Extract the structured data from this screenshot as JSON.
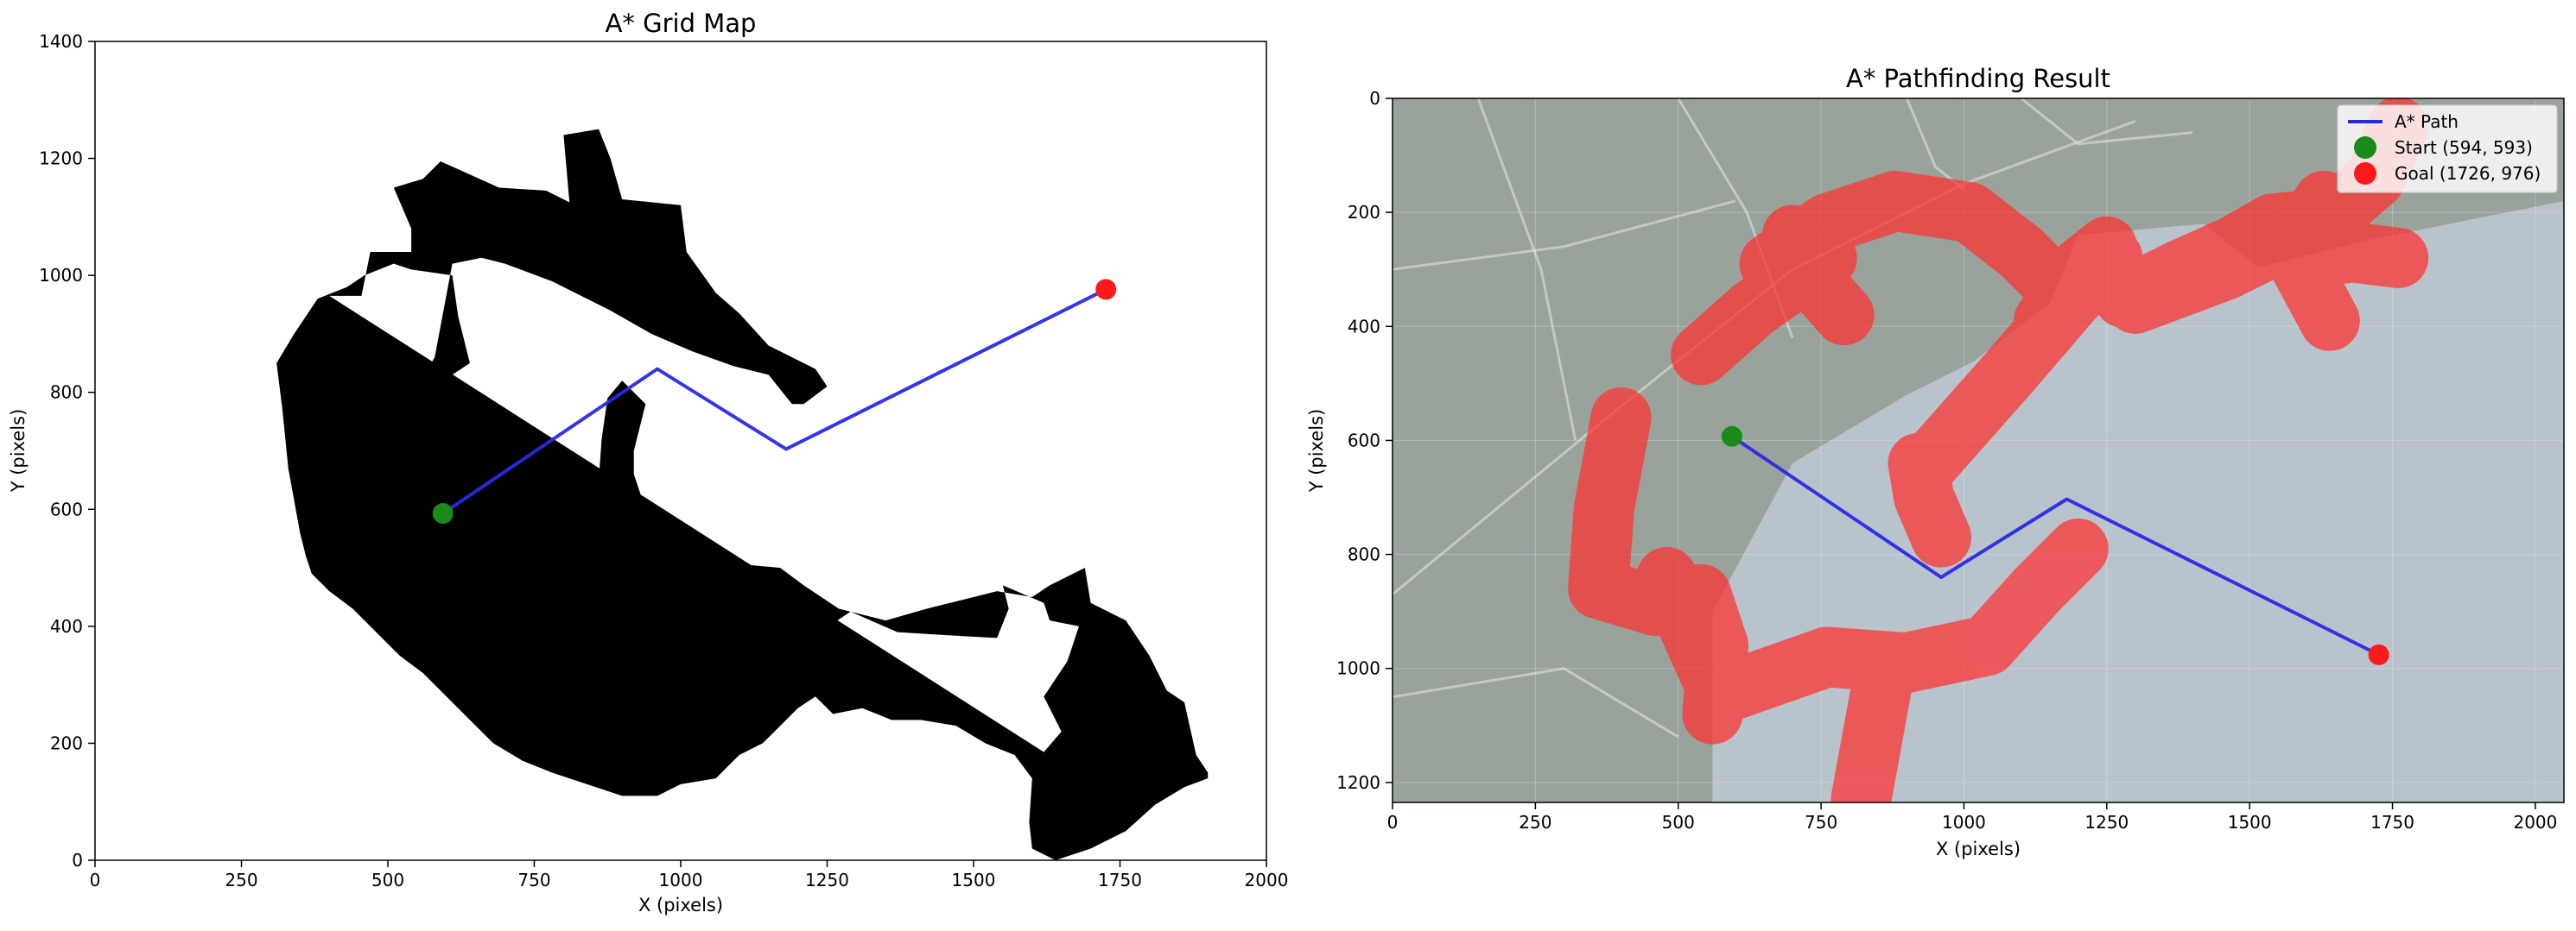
{
  "chart_data": [
    {
      "type": "scatter",
      "title": "A* Grid Map",
      "xlabel": "X (pixels)",
      "ylabel": "Y (pixels)",
      "xlim": [
        0,
        2000
      ],
      "ylim": [
        0,
        1400
      ],
      "y_direction": "up",
      "xticks": [
        "0",
        "250",
        "500",
        "750",
        "1000",
        "1250",
        "1500",
        "1750",
        "2000"
      ],
      "yticks": [
        "0",
        "200",
        "400",
        "600",
        "800",
        "1000",
        "1200",
        "1400"
      ],
      "grid": false,
      "obstacle_color": "#000000",
      "obstacle_outline": [
        [
          [
            400,
            965
          ],
          [
            455,
            965
          ],
          [
            470,
            1040
          ],
          [
            540,
            1040
          ],
          [
            540,
            1080
          ],
          [
            510,
            1150
          ],
          [
            560,
            1165
          ],
          [
            590,
            1195
          ],
          [
            690,
            1150
          ],
          [
            770,
            1145
          ],
          [
            810,
            1125
          ],
          [
            800,
            1240
          ],
          [
            860,
            1250
          ],
          [
            880,
            1200
          ],
          [
            900,
            1130
          ],
          [
            1000,
            1120
          ],
          [
            1010,
            1040
          ],
          [
            1060,
            970
          ],
          [
            1100,
            935
          ],
          [
            1150,
            880
          ],
          [
            1230,
            840
          ],
          [
            1250,
            810
          ],
          [
            1210,
            780
          ],
          [
            1190,
            780
          ],
          [
            1150,
            830
          ],
          [
            1090,
            845
          ],
          [
            1020,
            870
          ],
          [
            950,
            900
          ],
          [
            880,
            940
          ],
          [
            780,
            990
          ],
          [
            700,
            1020
          ],
          [
            660,
            1030
          ],
          [
            610,
            1020
          ],
          [
            595,
            940
          ],
          [
            580,
            860
          ],
          [
            540,
            790
          ],
          [
            495,
            780
          ],
          [
            460,
            770
          ],
          [
            470,
            650
          ],
          [
            520,
            640
          ],
          [
            560,
            590
          ],
          [
            610,
            560
          ],
          [
            650,
            510
          ],
          [
            700,
            460
          ],
          [
            760,
            450
          ],
          [
            830,
            470
          ],
          [
            870,
            500
          ],
          [
            880,
            370
          ],
          [
            820,
            340
          ],
          [
            830,
            290
          ],
          [
            880,
            280
          ],
          [
            1050,
            270
          ],
          [
            1040,
            340
          ],
          [
            1030,
            410
          ],
          [
            1060,
            430
          ],
          [
            1150,
            410
          ],
          [
            1230,
            385
          ],
          [
            1290,
            425
          ],
          [
            1370,
            390
          ],
          [
            1450,
            385
          ],
          [
            1540,
            380
          ],
          [
            1560,
            430
          ],
          [
            1550,
            470
          ],
          [
            1620,
            440
          ],
          [
            1630,
            410
          ],
          [
            1680,
            400
          ],
          [
            1660,
            340
          ],
          [
            1620,
            280
          ],
          [
            1650,
            220
          ],
          [
            1620,
            185
          ],
          [
            1600,
            140
          ],
          [
            1595,
            65
          ],
          [
            1600,
            20
          ],
          [
            1640,
            0
          ],
          [
            1700,
            20
          ],
          [
            1760,
            50
          ],
          [
            1810,
            95
          ],
          [
            1860,
            125
          ],
          [
            1900,
            140
          ],
          [
            1900,
            150
          ],
          [
            1880,
            180
          ],
          [
            1860,
            270
          ],
          [
            1830,
            290
          ],
          [
            1800,
            350
          ],
          [
            1760,
            410
          ],
          [
            1700,
            440
          ],
          [
            1690,
            500
          ],
          [
            1630,
            470
          ],
          [
            1600,
            450
          ],
          [
            1540,
            460
          ],
          [
            1420,
            430
          ],
          [
            1350,
            410
          ],
          [
            1270,
            430
          ],
          [
            1210,
            470
          ],
          [
            1170,
            500
          ],
          [
            1060,
            510
          ],
          [
            1000,
            530
          ],
          [
            940,
            600
          ],
          [
            920,
            660
          ],
          [
            920,
            700
          ],
          [
            940,
            780
          ],
          [
            900,
            820
          ],
          [
            875,
            790
          ],
          [
            865,
            720
          ],
          [
            860,
            650
          ],
          [
            860,
            580
          ],
          [
            830,
            560
          ],
          [
            800,
            510
          ],
          [
            780,
            480
          ],
          [
            740,
            480
          ],
          [
            700,
            520
          ],
          [
            660,
            550
          ],
          [
            620,
            580
          ],
          [
            600,
            640
          ],
          [
            570,
            660
          ],
          [
            560,
            760
          ],
          [
            580,
            810
          ],
          [
            610,
            830
          ],
          [
            640,
            850
          ],
          [
            620,
            930
          ],
          [
            610,
            1000
          ],
          [
            540,
            1010
          ],
          [
            510,
            1020
          ],
          [
            460,
            1000
          ],
          [
            430,
            980
          ],
          [
            380,
            960
          ],
          [
            340,
            900
          ],
          [
            310,
            850
          ],
          [
            320,
            770
          ],
          [
            330,
            670
          ],
          [
            350,
            560
          ],
          [
            360,
            520
          ],
          [
            370,
            490
          ],
          [
            400,
            460
          ],
          [
            440,
            430
          ],
          [
            480,
            390
          ],
          [
            520,
            350
          ],
          [
            560,
            320
          ],
          [
            600,
            280
          ],
          [
            640,
            240
          ],
          [
            680,
            200
          ],
          [
            730,
            170
          ],
          [
            780,
            150
          ],
          [
            840,
            130
          ],
          [
            900,
            110
          ],
          [
            960,
            110
          ],
          [
            1000,
            130
          ],
          [
            1060,
            140
          ],
          [
            1100,
            180
          ],
          [
            1140,
            200
          ],
          [
            1180,
            240
          ],
          [
            1200,
            260
          ],
          [
            1230,
            280
          ],
          [
            1260,
            250
          ],
          [
            1310,
            260
          ],
          [
            1360,
            240
          ],
          [
            1410,
            240
          ],
          [
            1470,
            230
          ],
          [
            1520,
            200
          ],
          [
            1570,
            180
          ],
          [
            1600,
            140
          ],
          [
            1620,
            185
          ]
        ]
      ],
      "series": [
        {
          "name": "A* Path",
          "x": [
            594,
            960,
            1180,
            1726
          ],
          "y": [
            593,
            840,
            703,
            976
          ],
          "color": "#2a2ae6",
          "mode": "line"
        },
        {
          "name": "Start",
          "x": [
            594
          ],
          "y": [
            593
          ],
          "color": "#1a8a1a",
          "mode": "marker"
        },
        {
          "name": "Goal",
          "x": [
            1726
          ],
          "y": [
            976
          ],
          "color": "#ff1a1a",
          "mode": "marker"
        }
      ]
    },
    {
      "type": "scatter",
      "title": "A* Pathfinding Result",
      "xlabel": "X (pixels)",
      "ylabel": "Y (pixels)",
      "xlim": [
        0,
        2050
      ],
      "ylim": [
        1235,
        0
      ],
      "y_direction": "down",
      "xticks": [
        "0",
        "250",
        "500",
        "750",
        "1000",
        "1250",
        "1500",
        "1750",
        "2000"
      ],
      "yticks": [
        "0",
        "200",
        "400",
        "600",
        "800",
        "1000",
        "1200"
      ],
      "grid": true,
      "background": {
        "land_color": "#9aa29c",
        "water_color": "#b9c3cb"
      },
      "highlight_color": "#ff3030",
      "highlight_paths": [
        [
          [
            540,
            450
          ],
          [
            630,
            370
          ],
          [
            700,
            320
          ],
          [
            760,
            280
          ]
        ],
        [
          [
            400,
            560
          ],
          [
            370,
            720
          ],
          [
            360,
            860
          ],
          [
            460,
            890
          ],
          [
            540,
            870
          ],
          [
            570,
            960
          ],
          [
            560,
            1080
          ]
        ],
        [
          [
            480,
            840
          ],
          [
            520,
            930
          ],
          [
            560,
            1020
          ]
        ],
        [
          [
            590,
            1040
          ],
          [
            760,
            980
          ],
          [
            900,
            990
          ],
          [
            1040,
            960
          ],
          [
            1130,
            860
          ],
          [
            1200,
            790
          ]
        ],
        [
          [
            820,
            1230
          ],
          [
            860,
            1010
          ]
        ],
        [
          [
            660,
            290
          ],
          [
            760,
            220
          ],
          [
            880,
            180
          ],
          [
            1010,
            200
          ],
          [
            1100,
            270
          ],
          [
            1150,
            320
          ]
        ],
        [
          [
            790,
            380
          ],
          [
            720,
            300
          ],
          [
            700,
            240
          ]
        ],
        [
          [
            1140,
            390
          ],
          [
            1200,
            300
          ],
          [
            1250,
            260
          ]
        ],
        [
          [
            920,
            640
          ],
          [
            930,
            700
          ],
          [
            960,
            770
          ]
        ],
        [
          [
            930,
            650
          ],
          [
            1080,
            480
          ],
          [
            1200,
            340
          ],
          [
            1260,
            280
          ]
        ],
        [
          [
            1280,
            350
          ],
          [
            1380,
            300
          ],
          [
            1470,
            260
          ],
          [
            1540,
            220
          ],
          [
            1640,
            210
          ],
          [
            1720,
            140
          ],
          [
            1760,
            50
          ]
        ],
        [
          [
            1300,
            360
          ],
          [
            1380,
            330
          ],
          [
            1460,
            300
          ],
          [
            1560,
            250
          ],
          [
            1600,
            280
          ],
          [
            1680,
            270
          ],
          [
            1760,
            280
          ]
        ],
        [
          [
            1570,
            260
          ],
          [
            1640,
            390
          ]
        ],
        [
          [
            1580,
            250
          ],
          [
            1630,
            180
          ]
        ]
      ],
      "series": [
        {
          "name": "A* Path",
          "x": [
            594,
            960,
            1180,
            1726
          ],
          "y": [
            593,
            840,
            703,
            976
          ],
          "color": "#2a2ae6",
          "mode": "line"
        },
        {
          "name": "Start (594, 593)",
          "x": [
            594
          ],
          "y": [
            593
          ],
          "color": "#1a8a1a",
          "mode": "marker"
        },
        {
          "name": "Goal (1726, 976)",
          "x": [
            1726
          ],
          "y": [
            976
          ],
          "color": "#ff1a1a",
          "mode": "marker"
        }
      ],
      "legend": {
        "placement": "top-right",
        "entries": [
          {
            "label": "A* Path",
            "kind": "line",
            "color": "#2a2ae6"
          },
          {
            "label": "Start (594, 593)",
            "kind": "marker",
            "color": "#1a8a1a"
          },
          {
            "label": "Goal (1726, 976)",
            "kind": "marker",
            "color": "#ff1a1a"
          }
        ]
      }
    }
  ]
}
